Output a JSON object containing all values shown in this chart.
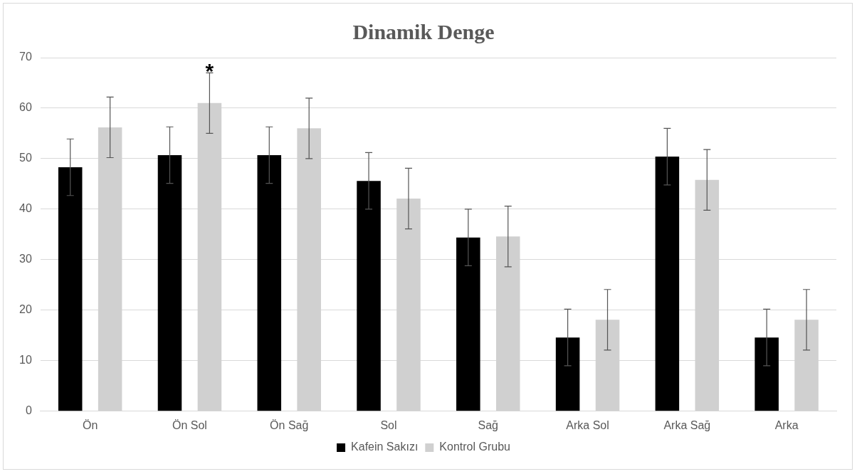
{
  "chart_data": {
    "type": "bar",
    "title": "Dinamik Denge",
    "categories": [
      "Ön",
      "Ön Sol",
      "Ön Sağ",
      "Sol",
      "Sağ",
      "Arka Sol",
      "Arka Sağ",
      "Arka"
    ],
    "series": [
      {
        "name": "Kafein Sakızı",
        "color": "#000000",
        "values": [
          48.3,
          50.7,
          50.7,
          45.6,
          34.4,
          14.6,
          50.4,
          14.6
        ],
        "errors": [
          5.6,
          5.6,
          5.6,
          5.6,
          5.6,
          5.6,
          5.6,
          5.6
        ]
      },
      {
        "name": "Kontrol Grubu",
        "color": "#d0d0d0",
        "values": [
          56.2,
          61,
          56,
          42.1,
          34.6,
          18.1,
          45.8,
          18.1
        ],
        "errors": [
          6,
          6,
          6,
          6,
          6,
          6,
          6,
          6
        ]
      }
    ],
    "ylim": [
      0,
      70
    ],
    "yticks": [
      0,
      10,
      20,
      30,
      40,
      50,
      60,
      70
    ],
    "grid": "y",
    "legend": "bottom",
    "annotations": [
      "*"
    ]
  }
}
